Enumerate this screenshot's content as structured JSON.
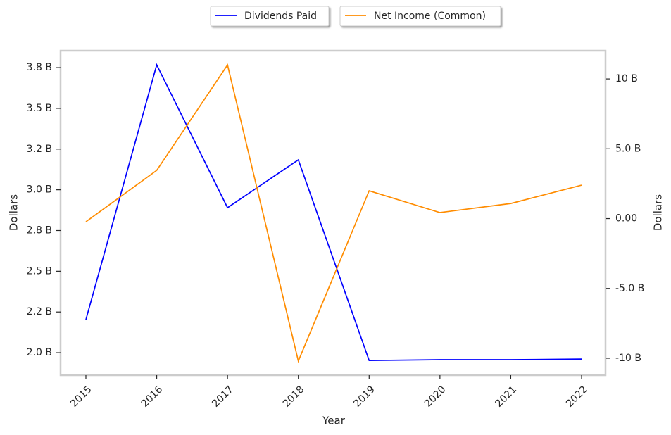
{
  "chart_data": {
    "type": "line",
    "categories": [
      "2015",
      "2016",
      "2017",
      "2018",
      "2019",
      "2020",
      "2021",
      "2022"
    ],
    "x_label": "Year",
    "y_label": "Dollars",
    "y2_label": "Dollars",
    "series": [
      {
        "name": "Dividends Paid",
        "color": "#0000ff",
        "values": [
          2.203,
          3.767,
          2.89,
          3.184,
          1.952,
          1.957,
          1.957,
          1.961
        ]
      },
      {
        "name": "Net Income (Common)",
        "color": "#ff8c00",
        "axis": "y2",
        "values": [
          -0.23,
          3.45,
          11.0,
          -10.2,
          1.99,
          0.43,
          1.08,
          2.39
        ]
      }
    ],
    "ylim": [
      1.862,
      3.854
    ],
    "yticks": [
      {
        "value": 2.0,
        "label": "2.0 B"
      },
      {
        "value": 2.25,
        "label": "2.2 B"
      },
      {
        "value": 2.5,
        "label": "2.5 B"
      },
      {
        "value": 2.75,
        "label": "2.8 B"
      },
      {
        "value": 3.0,
        "label": "3.0 B"
      },
      {
        "value": 3.25,
        "label": "3.2 B"
      },
      {
        "value": 3.5,
        "label": "3.5 B"
      },
      {
        "value": 3.75,
        "label": "3.8 B"
      }
    ],
    "y2lim": [
      -11.21,
      12.02
    ],
    "y2ticks": [
      {
        "value": -10,
        "label": "-10 B"
      },
      {
        "value": -5,
        "label": "-5.0 B"
      },
      {
        "value": 0,
        "label": "0.00"
      },
      {
        "value": 5,
        "label": "5.0 B"
      },
      {
        "value": 10,
        "label": "10 B"
      }
    ],
    "legend": "top"
  }
}
